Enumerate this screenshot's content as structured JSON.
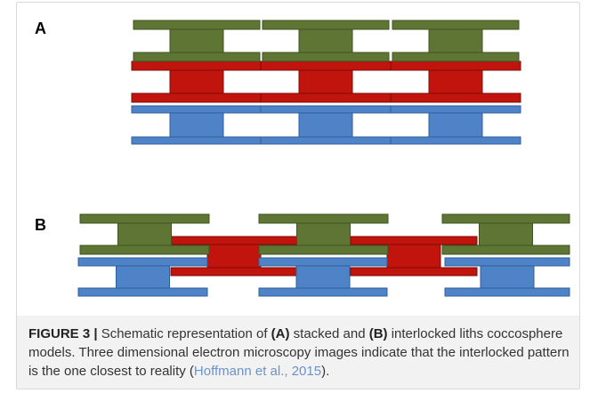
{
  "panels": {
    "a_label": "A",
    "b_label": "B"
  },
  "colors": {
    "green": "#5e7533",
    "green_stroke": "#3f5421",
    "red": "#c0140d",
    "red_stroke": "#7d0d08",
    "blue": "#4f83c8",
    "blue_stroke": "#2f5e9c"
  },
  "caption": {
    "figure_label": "FIGURE 3 |",
    "text1": " Schematic representation of ",
    "a_ref": "(A)",
    "text2": " stacked and ",
    "b_ref": "(B)",
    "text3": " interlocked liths coccosphere models. Three dimensional electron microscopy images indicate that the interlocked pattern is the one closest to reality (",
    "citation": "Hoffmann et al., 2015",
    "text4": ")."
  }
}
